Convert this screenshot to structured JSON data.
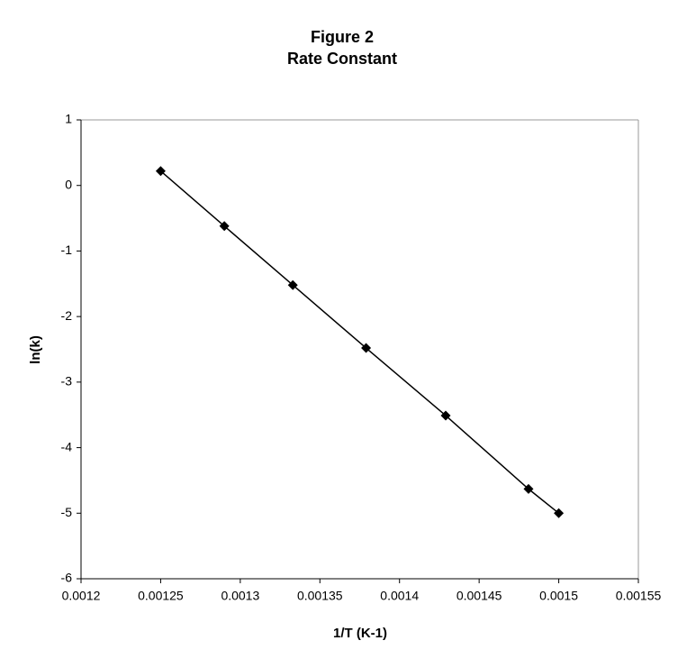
{
  "chart_data": {
    "type": "scatter",
    "title": "Figure 2",
    "subtitle": "Rate Constant",
    "x_label": "1/T (K-1)",
    "y_label": "ln(k)",
    "x": [
      0.00125,
      0.00129,
      0.001333,
      0.001379,
      0.001429,
      0.001481,
      0.0015
    ],
    "values": [
      0.22,
      -0.62,
      -1.52,
      -2.48,
      -3.51,
      -4.63,
      -5.0
    ],
    "color": "#000000",
    "connect": true,
    "xlim": [
      0.0012,
      0.00155
    ],
    "xticks": [
      0.0012,
      0.00125,
      0.0013,
      0.00135,
      0.0014,
      0.00145,
      0.0015,
      0.00155
    ],
    "ylim": [
      -6,
      1
    ],
    "yticks": [
      -6,
      -5,
      -4,
      -3,
      -2,
      -1,
      0,
      1
    ]
  }
}
